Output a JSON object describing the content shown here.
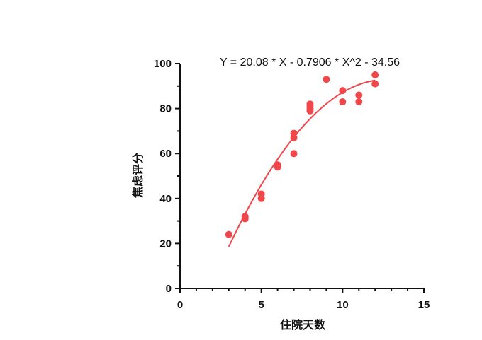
{
  "chart_data": {
    "type": "scatter",
    "xlabel": "住院天数",
    "ylabel": "焦虑评分",
    "xlim": [
      0,
      15
    ],
    "ylim": [
      0,
      100
    ],
    "xticks": [
      "0",
      "5",
      "10",
      "15"
    ],
    "yticks": [
      "0",
      "20",
      "40",
      "60",
      "80",
      "100"
    ],
    "annotation": "Y = 20.08 * X - 0.7906 * X^2 - 34.56",
    "grid": false,
    "point_color": "#f0474b",
    "fit_color": "#f0474b",
    "series": [
      {
        "points": [
          {
            "x": 3,
            "y": 24
          },
          {
            "x": 4,
            "y": 31
          },
          {
            "x": 4,
            "y": 32
          },
          {
            "x": 5,
            "y": 40
          },
          {
            "x": 5,
            "y": 42
          },
          {
            "x": 6,
            "y": 54
          },
          {
            "x": 6,
            "y": 55
          },
          {
            "x": 7,
            "y": 60
          },
          {
            "x": 7,
            "y": 67
          },
          {
            "x": 7,
            "y": 69
          },
          {
            "x": 8,
            "y": 79
          },
          {
            "x": 8,
            "y": 80
          },
          {
            "x": 8,
            "y": 81
          },
          {
            "x": 8,
            "y": 82
          },
          {
            "x": 9,
            "y": 93
          },
          {
            "x": 10,
            "y": 83
          },
          {
            "x": 10,
            "y": 88
          },
          {
            "x": 11,
            "y": 83
          },
          {
            "x": 11,
            "y": 86
          },
          {
            "x": 12,
            "y": 91
          },
          {
            "x": 12,
            "y": 95
          }
        ]
      }
    ],
    "fit": {
      "type": "quadratic",
      "a": -0.7906,
      "b": 20.08,
      "c": -34.56,
      "x_range": [
        3,
        12
      ]
    }
  }
}
